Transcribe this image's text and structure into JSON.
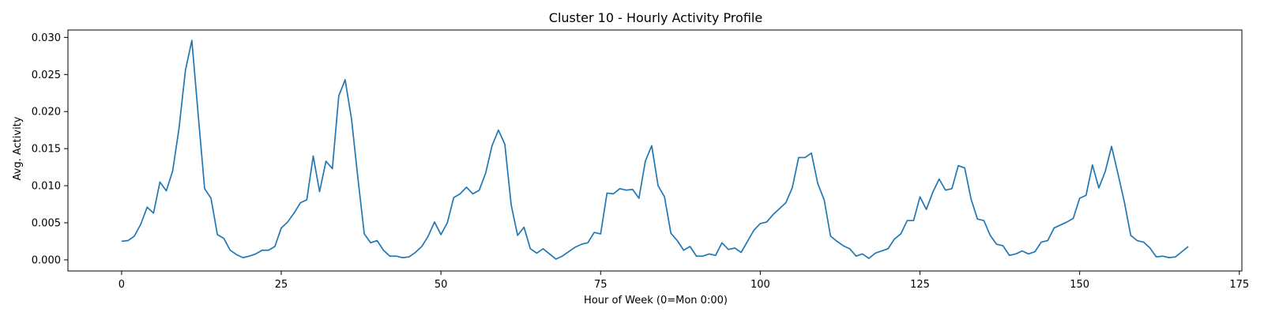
{
  "chart_data": {
    "type": "line",
    "title": "Cluster 10 - Hourly Activity Profile",
    "xlabel": "Hour of Week (0=Mon 0:00)",
    "ylabel": "Avg. Activity",
    "xlim": [
      -8.4,
      175.4
    ],
    "ylim": [
      -0.0015,
      0.031
    ],
    "xticks": [
      0,
      25,
      50,
      75,
      100,
      125,
      150,
      175
    ],
    "yticks": [
      0.0,
      0.005,
      0.01,
      0.015,
      0.02,
      0.025,
      0.03
    ],
    "ytick_labels": [
      "0.000",
      "0.005",
      "0.010",
      "0.015",
      "0.020",
      "0.025",
      "0.030"
    ],
    "grid": false,
    "line_color": "#1f77b4",
    "series": [
      {
        "x_start": 0,
        "values": [
          0.0025,
          0.0026,
          0.0032,
          0.0048,
          0.0071,
          0.0063,
          0.0105,
          0.0093,
          0.012,
          0.0178,
          0.0256,
          0.0296,
          0.0195,
          0.0096,
          0.0083,
          0.0034,
          0.0029,
          0.0013,
          0.0007,
          0.0003,
          0.0005,
          0.0008,
          0.0013,
          0.0013,
          0.0018,
          0.0043,
          0.0051,
          0.0063,
          0.0077,
          0.0081,
          0.014,
          0.0092,
          0.0133,
          0.0123,
          0.0221,
          0.0243,
          0.019,
          0.011,
          0.0035,
          0.0023,
          0.0026,
          0.0013,
          0.0005,
          0.0005,
          0.0003,
          0.0004,
          0.001,
          0.0018,
          0.0032,
          0.0051,
          0.0034,
          0.005,
          0.0084,
          0.0089,
          0.0098,
          0.0089,
          0.0094,
          0.0117,
          0.0154,
          0.0175,
          0.0156,
          0.0074,
          0.0033,
          0.0044,
          0.0015,
          0.0009,
          0.0015,
          0.0008,
          0.0001,
          0.0005,
          0.0011,
          0.0017,
          0.0021,
          0.0023,
          0.0037,
          0.0035,
          0.009,
          0.0089,
          0.0096,
          0.0094,
          0.0095,
          0.0083,
          0.0133,
          0.0154,
          0.01,
          0.0085,
          0.0036,
          0.0026,
          0.0013,
          0.0018,
          0.0005,
          0.0005,
          0.0008,
          0.0006,
          0.0023,
          0.0014,
          0.0016,
          0.001,
          0.0025,
          0.004,
          0.0049,
          0.0051,
          0.0061,
          0.0069,
          0.0077,
          0.0097,
          0.0138,
          0.0138,
          0.0144,
          0.0103,
          0.0081,
          0.0032,
          0.0025,
          0.0019,
          0.0015,
          0.0005,
          0.0008,
          0.0002,
          0.0009,
          0.0012,
          0.0015,
          0.0028,
          0.0035,
          0.0053,
          0.0053,
          0.0085,
          0.0068,
          0.0091,
          0.0109,
          0.0094,
          0.0096,
          0.0127,
          0.0124,
          0.0082,
          0.0055,
          0.0053,
          0.0033,
          0.0021,
          0.0019,
          0.0006,
          0.0008,
          0.0012,
          0.0008,
          0.0011,
          0.0024,
          0.0026,
          0.0043,
          0.0047,
          0.0051,
          0.0056,
          0.0083,
          0.0087,
          0.0128,
          0.0097,
          0.0119,
          0.0153,
          0.0116,
          0.0078,
          0.0033,
          0.0026,
          0.0024,
          0.0016,
          0.0004,
          0.0005,
          0.0003,
          0.0004,
          0.0011,
          0.0018
        ]
      }
    ]
  }
}
